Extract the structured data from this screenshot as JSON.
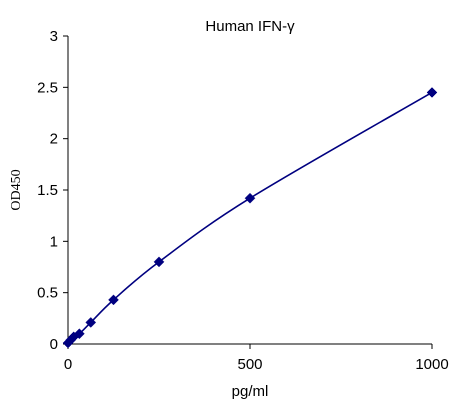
{
  "chart_data": {
    "type": "scatter",
    "title": "Human IFN-γ",
    "xlabel": "pg/ml",
    "ylabel": "OD450",
    "xlim": [
      0,
      1000
    ],
    "ylim": [
      0,
      3
    ],
    "x_ticks": [
      0,
      500,
      1000
    ],
    "y_ticks": [
      0,
      0.5,
      1,
      1.5,
      2,
      2.5,
      3
    ],
    "x_tick_labels": [
      "0",
      "500",
      "1000"
    ],
    "y_tick_labels": [
      "0",
      "0.5",
      "1",
      "1.5",
      "2",
      "2.5",
      "3"
    ],
    "grid": false,
    "legend": "none",
    "series": [
      {
        "x": [
          0,
          7.8,
          15.6,
          31.25,
          62.5,
          125,
          250,
          500,
          1000
        ],
        "y": [
          0.01,
          0.04,
          0.07,
          0.1,
          0.21,
          0.43,
          0.8,
          1.42,
          2.45
        ],
        "marker": "diamond",
        "trendline": "smooth",
        "color": "#000080"
      }
    ]
  }
}
